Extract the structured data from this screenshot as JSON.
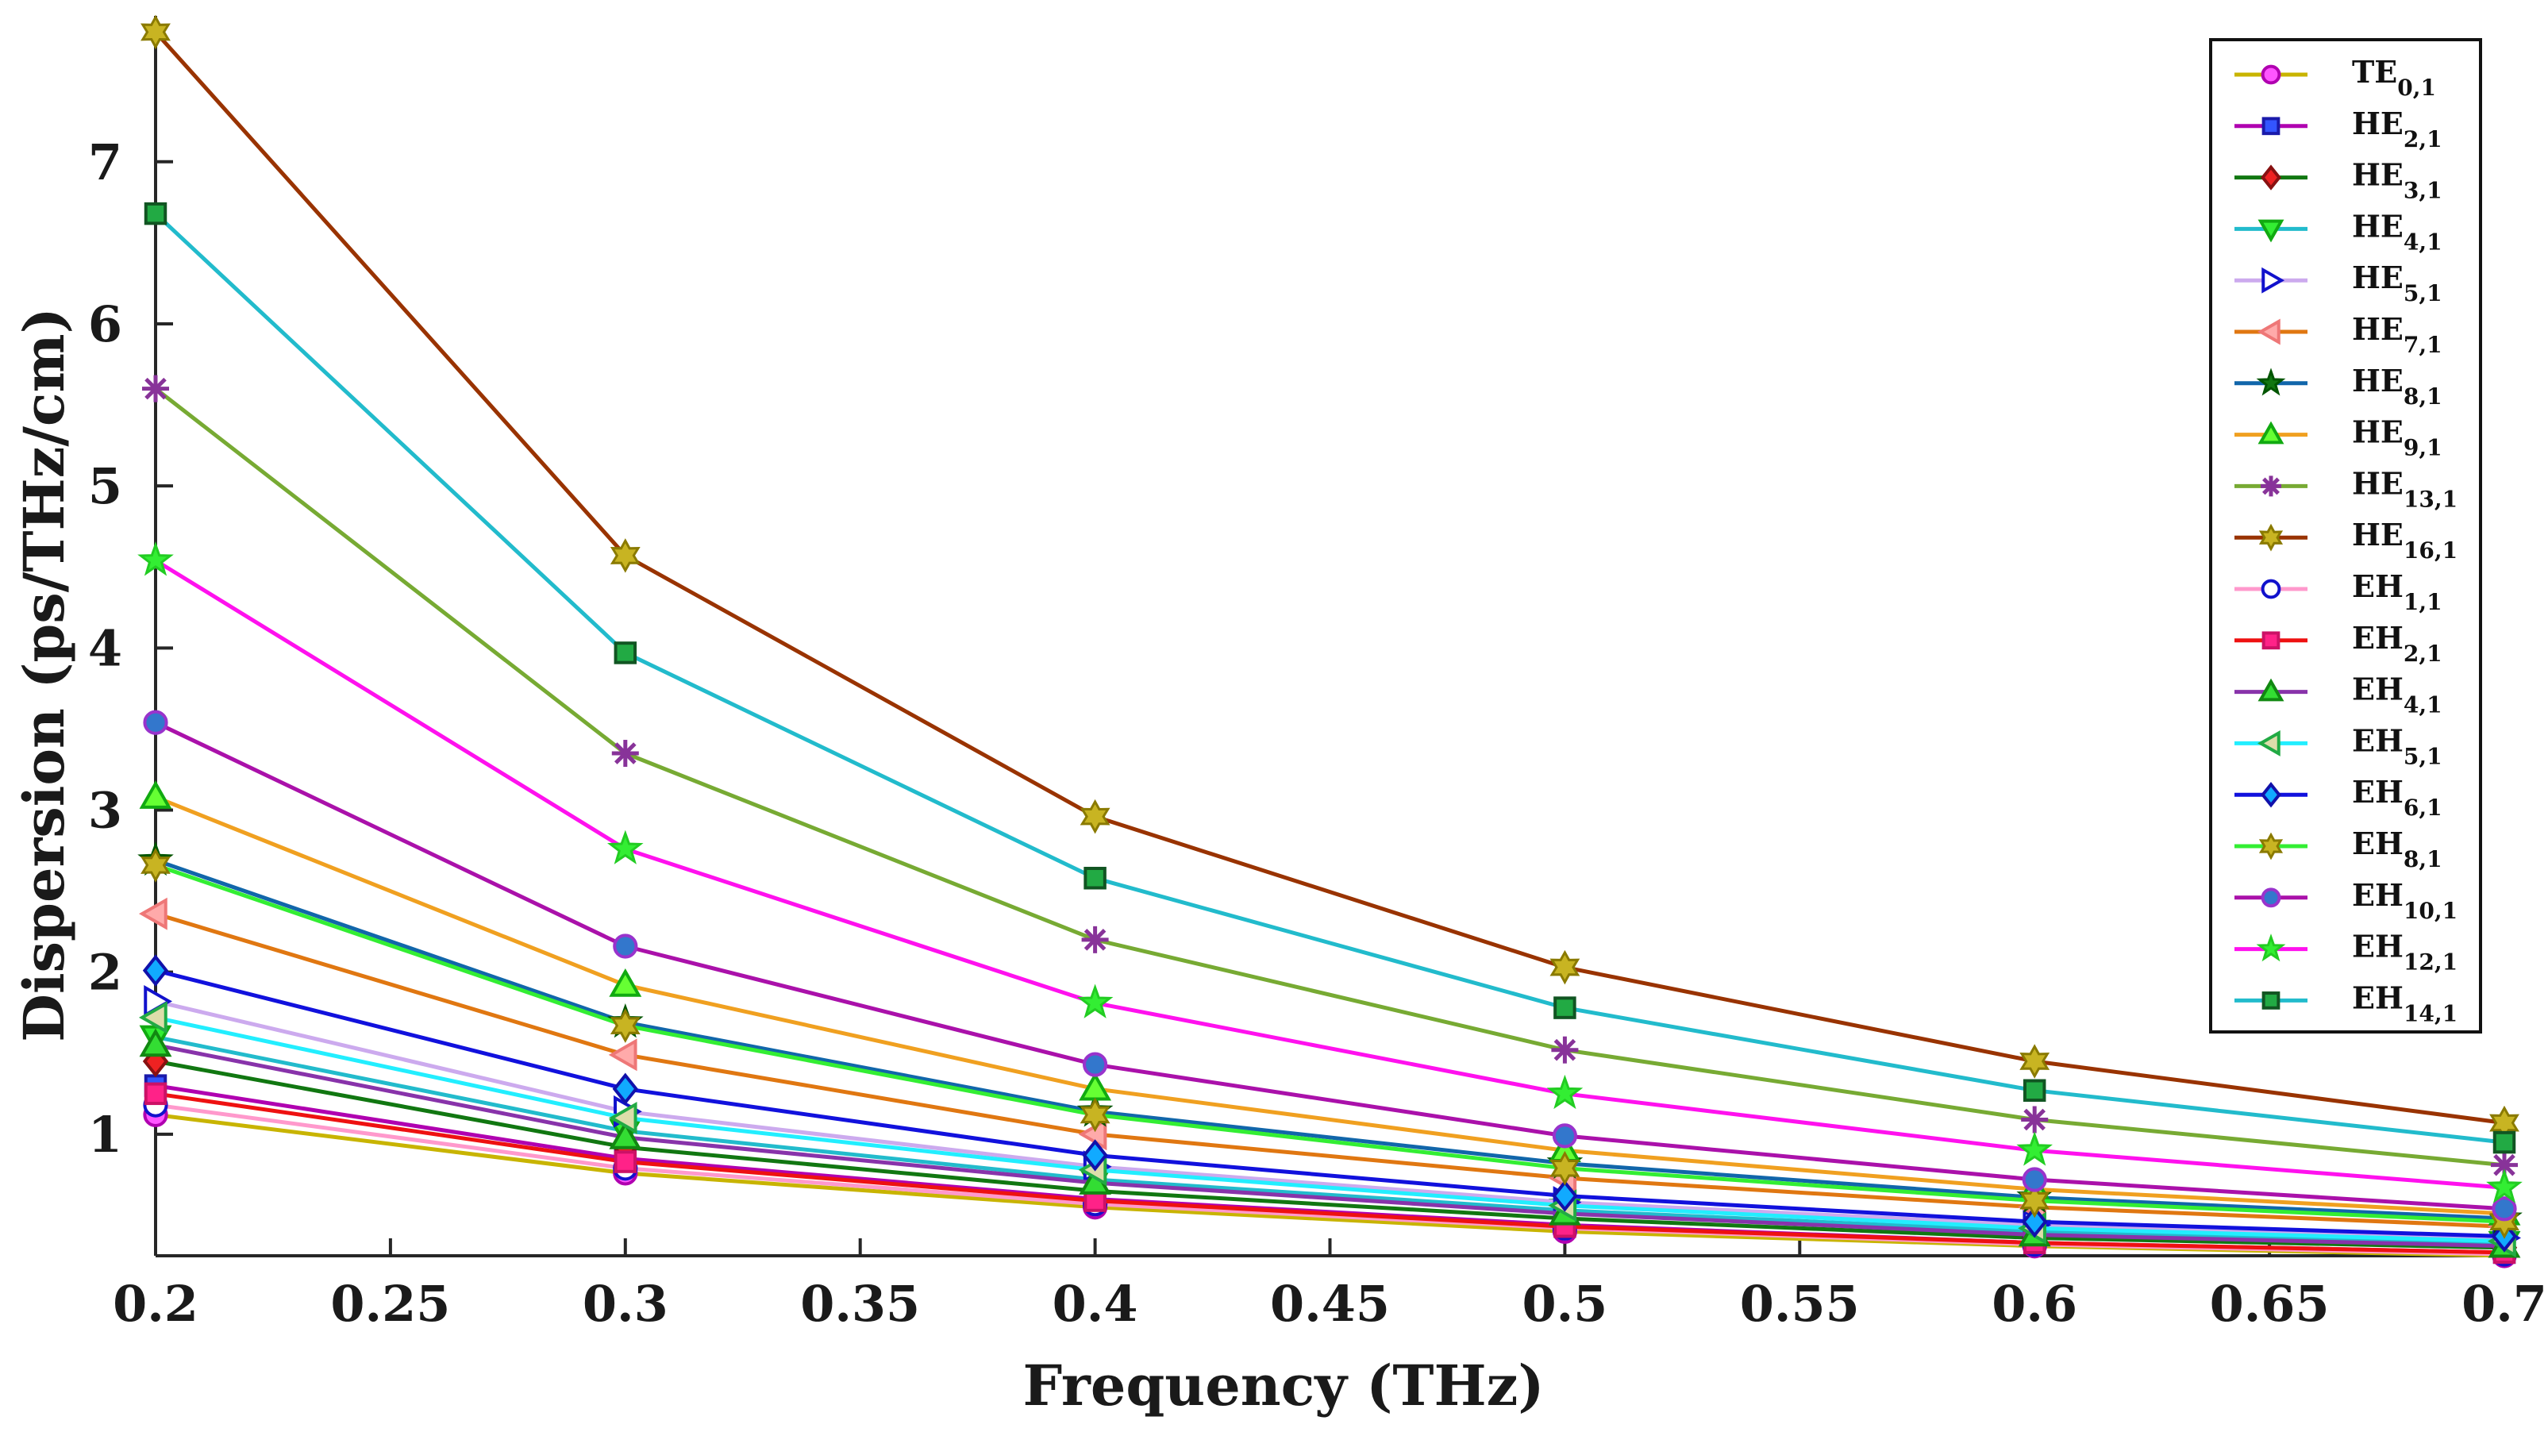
{
  "chart_data": {
    "type": "line",
    "title": "",
    "xlabel": "Frequency (THz)",
    "ylabel": "Dispersion (ps/THz/cm)",
    "xlim": [
      0.2,
      0.7
    ],
    "ylim": [
      0.25,
      7.9
    ],
    "xticks": [
      "0.2",
      "0.25",
      "0.3",
      "0.35",
      "0.4",
      "0.45",
      "0.5",
      "0.55",
      "0.6",
      "0.65",
      "0.7"
    ],
    "yticks": [
      "1",
      "2",
      "3",
      "4",
      "5",
      "6",
      "7"
    ],
    "grid": false,
    "legend_position": "top-right",
    "x": [
      0.2,
      0.3,
      0.4,
      0.5,
      0.6,
      0.7
    ],
    "series": [
      {
        "name": "TE",
        "sub": "0,1",
        "marker": "circle",
        "line": "#c8b400",
        "fill": "#ff55ff",
        "edge": "#b000b0",
        "values": [
          1.12,
          0.76,
          0.55,
          0.4,
          0.31,
          0.25
        ]
      },
      {
        "name": "HE",
        "sub": "2,1",
        "marker": "square",
        "line": "#b000b0",
        "fill": "#3355ff",
        "edge": "#1a1aaa",
        "values": [
          1.3,
          0.85,
          0.6,
          0.44,
          0.33,
          0.27
        ]
      },
      {
        "name": "HE",
        "sub": "3,1",
        "marker": "diamond",
        "line": "#117711",
        "fill": "#ee2222",
        "edge": "#881111",
        "values": [
          1.45,
          0.92,
          0.65,
          0.48,
          0.36,
          0.3
        ]
      },
      {
        "name": "HE",
        "sub": "4,1",
        "marker": "triangle-down",
        "line": "#22bbcc",
        "fill": "#33ee33",
        "edge": "#11aa11",
        "values": [
          1.6,
          1.02,
          0.72,
          0.53,
          0.4,
          0.33
        ]
      },
      {
        "name": "HE",
        "sub": "5,1",
        "marker": "triangle-right",
        "line": "#ccaaee",
        "fill": "#ffffff",
        "edge": "#1111cc",
        "values": [
          1.82,
          1.14,
          0.8,
          0.58,
          0.44,
          0.36
        ]
      },
      {
        "name": "HE",
        "sub": "7,1",
        "marker": "triangle-left",
        "line": "#e07711",
        "fill": "#ffaaaa",
        "edge": "#ee7777",
        "values": [
          2.36,
          1.49,
          1.0,
          0.73,
          0.55,
          0.43
        ]
      },
      {
        "name": "HE",
        "sub": "8,1",
        "marker": "pentagram",
        "line": "#1166aa",
        "fill": "#117711",
        "edge": "#005500",
        "values": [
          2.69,
          1.69,
          1.14,
          0.82,
          0.61,
          0.48
        ]
      },
      {
        "name": "HE",
        "sub": "9,1",
        "marker": "triangle-up",
        "line": "#f0a020",
        "fill": "#66ff33",
        "edge": "#11aa11",
        "values": [
          3.08,
          1.92,
          1.28,
          0.9,
          0.66,
          0.51
        ]
      },
      {
        "name": "HE",
        "sub": "13,1",
        "marker": "asterisk",
        "line": "#77aa33",
        "fill": "#883399",
        "edge": "#883399",
        "values": [
          5.6,
          3.35,
          2.2,
          1.52,
          1.09,
          0.81
        ]
      },
      {
        "name": "HE",
        "sub": "16,1",
        "marker": "hexagram",
        "line": "#993300",
        "fill": "#c8b422",
        "edge": "#8a7a00",
        "values": [
          7.8,
          4.57,
          2.96,
          2.03,
          1.45,
          1.07
        ]
      },
      {
        "name": "EH",
        "sub": "1,1",
        "marker": "circle",
        "line": "#ff99cc",
        "fill": "#ffffff",
        "edge": "#1111cc",
        "values": [
          1.18,
          0.79,
          0.57,
          0.42,
          0.32,
          0.26
        ]
      },
      {
        "name": "EH",
        "sub": "2,1",
        "marker": "square",
        "line": "#ee1111",
        "fill": "#ff2288",
        "edge": "#cc1166",
        "values": [
          1.25,
          0.83,
          0.59,
          0.43,
          0.33,
          0.27
        ]
      },
      {
        "name": "EH",
        "sub": "4,1",
        "marker": "triangle-up",
        "line": "#8833aa",
        "fill": "#33dd33",
        "edge": "#118811",
        "values": [
          1.55,
          0.98,
          0.7,
          0.51,
          0.38,
          0.31
        ]
      },
      {
        "name": "EH",
        "sub": "5,1",
        "marker": "triangle-left",
        "line": "#22eeff",
        "fill": "#ddddaa",
        "edge": "#22aa44",
        "values": [
          1.72,
          1.1,
          0.78,
          0.56,
          0.42,
          0.34
        ]
      },
      {
        "name": "EH",
        "sub": "6,1",
        "marker": "diamond",
        "line": "#1111dd",
        "fill": "#11aaff",
        "edge": "#1111aa",
        "values": [
          2.01,
          1.28,
          0.87,
          0.62,
          0.46,
          0.37
        ]
      },
      {
        "name": "EH",
        "sub": "8,1",
        "marker": "hexagram",
        "line": "#33ee33",
        "fill": "#c8b422",
        "edge": "#8a7a00",
        "values": [
          2.66,
          1.67,
          1.12,
          0.79,
          0.59,
          0.46
        ]
      },
      {
        "name": "EH",
        "sub": "10,1",
        "marker": "circle",
        "line": "#aa11aa",
        "fill": "#3377cc",
        "edge": "#9933cc",
        "values": [
          3.54,
          2.16,
          1.43,
          0.99,
          0.72,
          0.54
        ]
      },
      {
        "name": "EH",
        "sub": "12,1",
        "marker": "pentagram",
        "line": "#ff11ee",
        "fill": "#33ee33",
        "edge": "#22cc22",
        "values": [
          4.54,
          2.76,
          1.81,
          1.25,
          0.9,
          0.67
        ]
      },
      {
        "name": "EH",
        "sub": "14,1",
        "marker": "square",
        "line": "#22bbcc",
        "fill": "#22aa44",
        "edge": "#115522",
        "values": [
          6.68,
          3.97,
          2.58,
          1.78,
          1.27,
          0.95
        ]
      }
    ]
  }
}
